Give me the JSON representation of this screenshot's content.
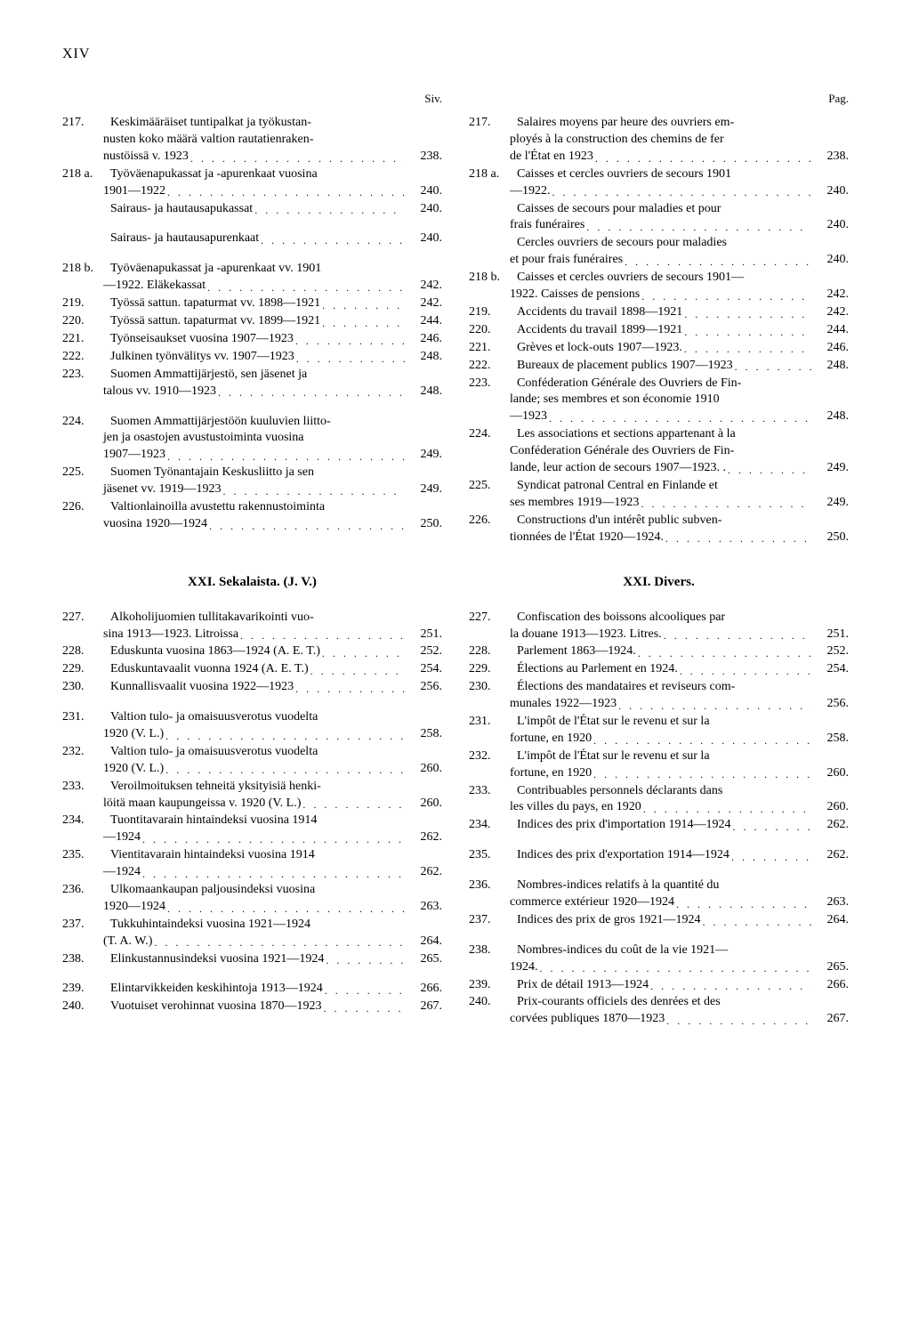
{
  "page_number": "XIV",
  "col_headers": {
    "left": "Siv.",
    "right": "Pag."
  },
  "left_entries": [
    {
      "num": "217.",
      "lines": [
        "Keskimääräiset tuntipalkat ja työkustan-",
        "nusten koko määrä valtion rautatienraken-"
      ],
      "last": "nustöissä v. 1923",
      "page": "238."
    },
    {
      "num": "218 a.",
      "lines": [
        "Työväenapukassat ja -apurenkaat vuosina"
      ],
      "last": "1901—1922",
      "page": "240."
    },
    {
      "num": "",
      "lines": [],
      "last": "Sairaus- ja hautausapukassat",
      "page": "240."
    },
    {
      "num": "",
      "lines": [],
      "last": "Sairaus- ja hautausapurenkaat",
      "page": "240.",
      "gap_before": true,
      "gap_after": true
    },
    {
      "num": "218 b.",
      "lines": [
        "Työväenapukassat ja -apurenkaat vv. 1901"
      ],
      "last": "—1922. Eläkekassat",
      "page": "242."
    },
    {
      "num": "219.",
      "lines": [],
      "last": "Työssä sattun. tapaturmat vv. 1898—1921",
      "page": "242."
    },
    {
      "num": "220.",
      "lines": [],
      "last": "Työssä sattun. tapaturmat vv. 1899—1921",
      "page": "244."
    },
    {
      "num": "221.",
      "lines": [],
      "last": "Työnseisaukset vuosina 1907—1923",
      "page": "246."
    },
    {
      "num": "222.",
      "lines": [],
      "last": "Julkinen työnvälitys vv. 1907—1923",
      "page": "248."
    },
    {
      "num": "223.",
      "lines": [
        "Suomen Ammattijärjestö, sen jäsenet ja"
      ],
      "last": "talous vv. 1910—1923",
      "page": "248.",
      "gap_after": true
    },
    {
      "num": "224.",
      "lines": [
        "Suomen Ammattijärjestöön kuuluvien liitto-",
        "jen ja osastojen avustustoiminta vuosina"
      ],
      "last": "1907—1923",
      "page": "249."
    },
    {
      "num": "225.",
      "lines": [
        "Suomen Työnantajain Keskusliitto ja sen"
      ],
      "last": "jäsenet vv. 1919—1923",
      "page": "249."
    },
    {
      "num": "226.",
      "lines": [
        "Valtionlainoilla avustettu rakennustoiminta"
      ],
      "last": "vuosina 1920—1924",
      "page": "250."
    }
  ],
  "right_entries": [
    {
      "num": "217.",
      "lines": [
        "Salaires moyens par heure des ouvriers em-",
        "ployés à la construction des chemins de fer"
      ],
      "last": "de l'État en 1923",
      "page": "238."
    },
    {
      "num": "218 a.",
      "lines": [
        "Caisses et cercles ouvriers de secours 1901"
      ],
      "last": "—1922.",
      "page": "240."
    },
    {
      "num": "",
      "lines": [
        "Caisses de secours pour maladies et pour"
      ],
      "last": "frais funéraires",
      "page": "240."
    },
    {
      "num": "",
      "lines": [
        "Cercles ouvriers de secours pour maladies"
      ],
      "last": "et pour frais funéraires",
      "page": "240."
    },
    {
      "num": "218 b.",
      "lines": [
        "Caisses et cercles ouvriers de secours 1901—"
      ],
      "last": "1922. Caisses de pensions",
      "page": "242."
    },
    {
      "num": "219.",
      "lines": [],
      "last": "Accidents du travail 1898—1921",
      "page": "242."
    },
    {
      "num": "220.",
      "lines": [],
      "last": "Accidents du travail 1899—1921",
      "page": "244."
    },
    {
      "num": "221.",
      "lines": [],
      "last": "Grèves et lock-outs 1907—1923.",
      "page": "246."
    },
    {
      "num": "222.",
      "lines": [],
      "last": "Bureaux de placement publics 1907—1923",
      "page": "248."
    },
    {
      "num": "223.",
      "lines": [
        "Conféderation Générale des Ouvriers de Fin-",
        "lande; ses membres et son économie 1910"
      ],
      "last": "—1923",
      "page": "248."
    },
    {
      "num": "224.",
      "lines": [
        "Les associations et sections appartenant à la",
        "Conféderation Générale des Ouvriers de Fin-"
      ],
      "last": "lande, leur action de secours 1907—1923. .",
      "page": "249."
    },
    {
      "num": "225.",
      "lines": [
        "Syndicat patronal Central en Finlande et"
      ],
      "last": "ses membres 1919—1923",
      "page": "249."
    },
    {
      "num": "226.",
      "lines": [
        "Constructions d'un intérêt public subven-"
      ],
      "last": "tionnées de l'État 1920—1924.",
      "page": "250."
    }
  ],
  "section_titles": {
    "left": "XXI. Sekalaista. (J. V.)",
    "right": "XXI. Divers."
  },
  "left_entries2": [
    {
      "num": "227.",
      "lines": [
        "Alkoholijuomien tullitakavarikointi vuo-"
      ],
      "last": "sina 1913—1923. Litroissa",
      "page": "251."
    },
    {
      "num": "228.",
      "lines": [],
      "last": "Eduskunta vuosina 1863—1924 (A. E. T.)",
      "page": "252."
    },
    {
      "num": "229.",
      "lines": [],
      "last": "Eduskuntavaalit vuonna 1924 (A. E. T.)",
      "page": "254."
    },
    {
      "num": "230.",
      "lines": [],
      "last": "Kunnallisvaalit vuosina 1922—1923",
      "page": "256.",
      "gap_after": true
    },
    {
      "num": "231.",
      "lines": [
        "Valtion tulo- ja omaisuusverotus vuodelta"
      ],
      "last": "1920 (V. L.)",
      "page": "258."
    },
    {
      "num": "232.",
      "lines": [
        "Valtion tulo- ja omaisuusverotus vuodelta"
      ],
      "last": "1920 (V. L.)",
      "page": "260."
    },
    {
      "num": "233.",
      "lines": [
        "Veroilmoituksen tehneitä yksityisiä henki-"
      ],
      "last": "löitä maan kaupungeissa v. 1920 (V. L.)",
      "page": "260."
    },
    {
      "num": "234.",
      "lines": [
        "Tuontitavarain hintaindeksi vuosina 1914"
      ],
      "last": "—1924",
      "page": "262."
    },
    {
      "num": "235.",
      "lines": [
        "Vientitavarain hintaindeksi vuosina 1914"
      ],
      "last": "—1924",
      "page": "262."
    },
    {
      "num": "236.",
      "lines": [
        "Ulkomaankaupan paljousindeksi vuosina"
      ],
      "last": "1920—1924",
      "page": "263."
    },
    {
      "num": "237.",
      "lines": [
        "Tukkuhintaindeksi vuosina 1921—1924"
      ],
      "last": "(T. A. W.)",
      "page": "264."
    },
    {
      "num": "238.",
      "lines": [],
      "last": "Elinkustannusindeksi vuosina 1921—1924",
      "page": "265.",
      "gap_after": true
    },
    {
      "num": "239.",
      "lines": [],
      "last": "Elintarvikkeiden keskihintoja 1913—1924",
      "page": "266."
    },
    {
      "num": "240.",
      "lines": [],
      "last": "Vuotuiset verohinnat vuosina 1870—1923",
      "page": "267."
    }
  ],
  "right_entries2": [
    {
      "num": "227.",
      "lines": [
        "Confiscation des boissons alcooliques par"
      ],
      "last": "la douane 1913—1923. Litres.",
      "page": "251."
    },
    {
      "num": "228.",
      "lines": [],
      "last": "Parlement 1863—1924.",
      "page": "252."
    },
    {
      "num": "229.",
      "lines": [],
      "last": "Élections au Parlement en 1924.",
      "page": "254."
    },
    {
      "num": "230.",
      "lines": [
        "Élections des mandataires et reviseurs com-"
      ],
      "last": "munales 1922—1923",
      "page": "256."
    },
    {
      "num": "231.",
      "lines": [
        "L'impôt de l'État sur le revenu et sur la"
      ],
      "last": "fortune, en 1920",
      "page": "258."
    },
    {
      "num": "232.",
      "lines": [
        "L'impôt de l'État sur le revenu et sur la"
      ],
      "last": "fortune, en 1920",
      "page": "260."
    },
    {
      "num": "233.",
      "lines": [
        "Contribuables personnels déclarants dans"
      ],
      "last": "les villes du pays, en 1920",
      "page": "260."
    },
    {
      "num": "234.",
      "lines": [],
      "last": "Indices des prix d'importation 1914—1924",
      "page": "262.",
      "gap_after": true
    },
    {
      "num": "235.",
      "lines": [],
      "last": "Indices des prix d'exportation 1914—1924",
      "page": "262.",
      "gap_after": true
    },
    {
      "num": "236.",
      "lines": [
        "Nombres-indices relatifs à la quantité du"
      ],
      "last": "commerce extérieur 1920—1924",
      "page": "263."
    },
    {
      "num": "237.",
      "lines": [],
      "last": "Indices des prix de gros 1921—1924",
      "page": "264.",
      "gap_after": true
    },
    {
      "num": "238.",
      "lines": [
        "Nombres-indices du coût de la vie 1921—"
      ],
      "last": "1924.",
      "page": "265."
    },
    {
      "num": "239.",
      "lines": [],
      "last": "Prix de détail 1913—1924",
      "page": "266."
    },
    {
      "num": "240.",
      "lines": [
        "Prix-courants officiels des denrées et des"
      ],
      "last": "corvées publiques 1870—1923",
      "page": "267."
    }
  ]
}
